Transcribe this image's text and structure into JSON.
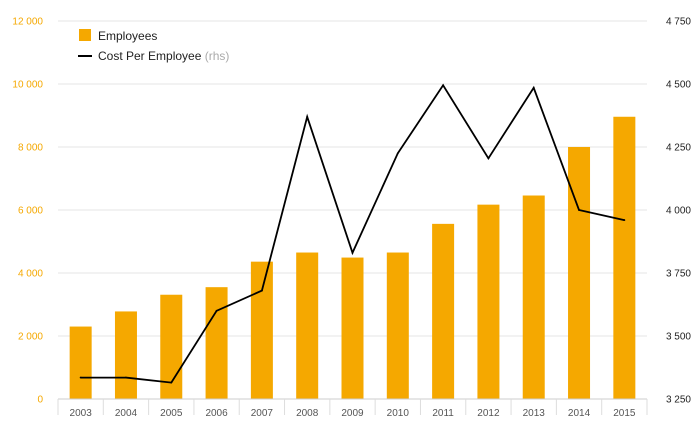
{
  "chart_data": {
    "type": "bar+line",
    "categories": [
      "2003",
      "2004",
      "2005",
      "2006",
      "2007",
      "2008",
      "2009",
      "2010",
      "2011",
      "2012",
      "2013",
      "2014",
      "2015"
    ],
    "series": [
      {
        "name": "Employees",
        "type": "bar",
        "axis": "left",
        "color": "#f5a800",
        "values": [
          2300,
          2780,
          3310,
          3550,
          4360,
          4650,
          4490,
          4650,
          5560,
          6170,
          6460,
          8000,
          8960
        ]
      },
      {
        "name": "Cost Per Employee",
        "note": "(rhs)",
        "type": "line",
        "axis": "right",
        "color": "#000000",
        "values": [
          3335,
          3335,
          3315,
          3600,
          3680,
          4370,
          3830,
          4225,
          4495,
          4205,
          4485,
          4000,
          3960
        ]
      }
    ],
    "y_left": {
      "min": 0,
      "max": 12000,
      "ticks": [
        0,
        2000,
        4000,
        6000,
        8000,
        10000,
        12000
      ],
      "tick_labels": [
        "0",
        "2 000",
        "4 000",
        "6 000",
        "8 000",
        "10 000",
        "12 000"
      ],
      "color": "#f5a800"
    },
    "y_right": {
      "min": 3250,
      "max": 4750,
      "ticks": [
        3250,
        3500,
        3750,
        4000,
        4250,
        4500,
        4750
      ],
      "tick_labels": [
        "3 250",
        "3 500",
        "3 750",
        "4 000",
        "4 250",
        "4 500",
        "4 750"
      ],
      "color": "#222222"
    },
    "grid": true,
    "legend_position": "top-left"
  }
}
